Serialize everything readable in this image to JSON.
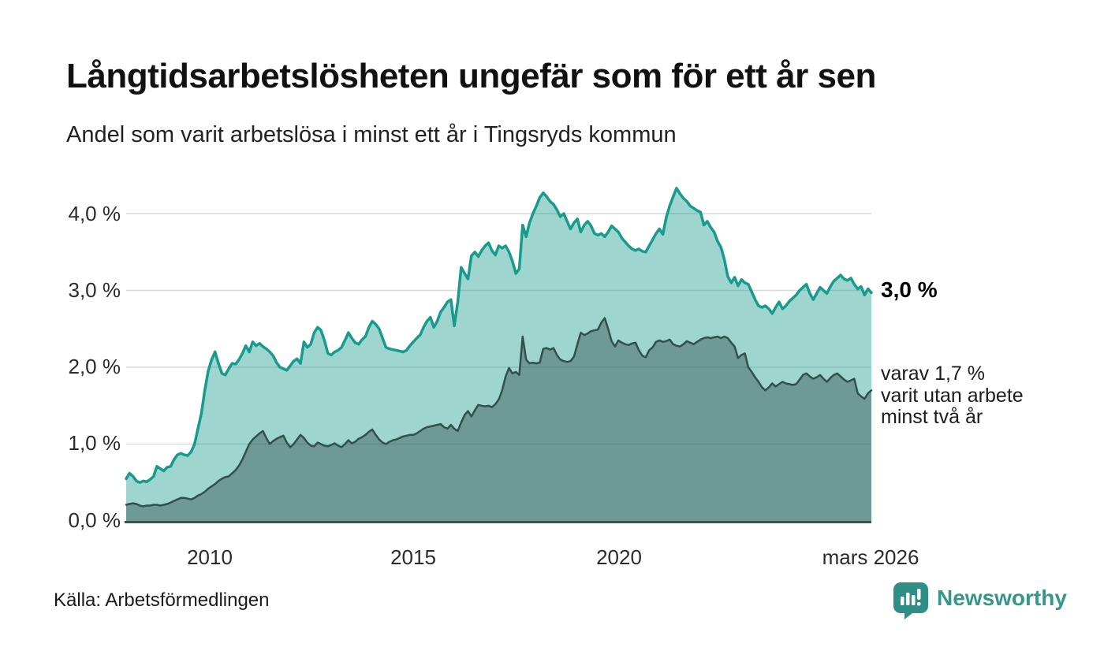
{
  "header": {
    "title": "Långtidsarbetslösheten ungefär som för ett år sen",
    "subtitle": "Andel som varit arbetslösa i minst ett år i Tingsryds kommun"
  },
  "chart_data": {
    "type": "area",
    "title": "Långtidsarbetslösheten ungefär som för ett år sen",
    "subtitle": "Andel som varit arbetslösa i minst ett år i Tingsryds kommun",
    "grid": true,
    "x_axis": {
      "start_year": 2008,
      "points_per_year": 12,
      "tick_labels": [
        "2010",
        "2015",
        "2020",
        "mars 2026"
      ]
    },
    "y_axis": {
      "tick_labels": [
        "4,0 %",
        "3,0 %",
        "2,0 %",
        "1,0 %",
        "0,0 %"
      ],
      "gridline_values": [
        1,
        2,
        3,
        4
      ],
      "range": [
        0,
        4.5
      ]
    },
    "series": [
      {
        "name": "Andel arbetslösa minst ett år",
        "color": "#189a8d",
        "fill": "rgba(24,154,141,0.42)",
        "latest_value": "3,0 %",
        "values": [
          0.55,
          0.62,
          0.58,
          0.52,
          0.5,
          0.52,
          0.51,
          0.54,
          0.58,
          0.71,
          0.68,
          0.65,
          0.7,
          0.71,
          0.8,
          0.86,
          0.88,
          0.86,
          0.85,
          0.9,
          1.0,
          1.2,
          1.4,
          1.7,
          1.95,
          2.1,
          2.2,
          2.05,
          1.92,
          1.9,
          1.98,
          2.05,
          2.04,
          2.1,
          2.18,
          2.28,
          2.2,
          2.33,
          2.28,
          2.31,
          2.27,
          2.24,
          2.2,
          2.15,
          2.06,
          2.0,
          1.98,
          1.96,
          2.02,
          2.08,
          2.11,
          2.05,
          2.33,
          2.26,
          2.3,
          2.45,
          2.52,
          2.48,
          2.35,
          2.18,
          2.16,
          2.2,
          2.22,
          2.26,
          2.35,
          2.45,
          2.38,
          2.32,
          2.3,
          2.36,
          2.4,
          2.52,
          2.6,
          2.56,
          2.5,
          2.38,
          2.26,
          2.24,
          2.23,
          2.22,
          2.21,
          2.2,
          2.22,
          2.28,
          2.33,
          2.38,
          2.42,
          2.52,
          2.6,
          2.65,
          2.52,
          2.6,
          2.72,
          2.78,
          2.85,
          2.88,
          2.54,
          2.85,
          3.3,
          3.22,
          3.15,
          3.45,
          3.5,
          3.44,
          3.52,
          3.58,
          3.62,
          3.52,
          3.46,
          3.58,
          3.55,
          3.58,
          3.5,
          3.38,
          3.22,
          3.28,
          3.85,
          3.7,
          3.88,
          4.0,
          4.1,
          4.21,
          4.27,
          4.22,
          4.16,
          4.12,
          4.05,
          3.96,
          4.0,
          3.9,
          3.8,
          3.88,
          3.93,
          3.76,
          3.85,
          3.9,
          3.84,
          3.74,
          3.72,
          3.74,
          3.7,
          3.76,
          3.84,
          3.8,
          3.76,
          3.68,
          3.63,
          3.58,
          3.54,
          3.52,
          3.54,
          3.51,
          3.5,
          3.58,
          3.66,
          3.74,
          3.8,
          3.73,
          3.95,
          4.1,
          4.22,
          4.33,
          4.26,
          4.2,
          4.16,
          4.1,
          4.07,
          4.04,
          4.02,
          3.85,
          3.9,
          3.82,
          3.76,
          3.64,
          3.56,
          3.4,
          3.18,
          3.1,
          3.17,
          3.06,
          3.14,
          3.1,
          3.08,
          2.98,
          2.88,
          2.8,
          2.78,
          2.8,
          2.76,
          2.7,
          2.78,
          2.85,
          2.76,
          2.8,
          2.86,
          2.9,
          2.94,
          3.0,
          3.04,
          3.08,
          2.96,
          2.88,
          2.96,
          3.04,
          3.0,
          2.96,
          3.05,
          3.12,
          3.16,
          3.2,
          3.15,
          3.13,
          3.16,
          3.08,
          3.02,
          3.05,
          2.94,
          3.02,
          2.97
        ]
      },
      {
        "name": "Andel utan arbete minst två år",
        "color": "#31504b",
        "fill": "rgba(52,81,77,0.45)",
        "latest_value": "1,7 %",
        "values": [
          0.21,
          0.22,
          0.23,
          0.22,
          0.2,
          0.19,
          0.2,
          0.2,
          0.21,
          0.21,
          0.2,
          0.21,
          0.22,
          0.24,
          0.26,
          0.28,
          0.3,
          0.3,
          0.29,
          0.28,
          0.3,
          0.33,
          0.35,
          0.38,
          0.42,
          0.45,
          0.48,
          0.52,
          0.55,
          0.57,
          0.58,
          0.62,
          0.66,
          0.72,
          0.8,
          0.9,
          1.0,
          1.06,
          1.1,
          1.14,
          1.17,
          1.08,
          1.0,
          1.04,
          1.07,
          1.09,
          1.11,
          1.02,
          0.96,
          1.0,
          1.06,
          1.12,
          1.08,
          1.02,
          0.98,
          0.97,
          1.02,
          1.0,
          0.98,
          0.97,
          0.99,
          1.01,
          0.98,
          0.96,
          1.0,
          1.05,
          1.01,
          1.03,
          1.07,
          1.09,
          1.12,
          1.16,
          1.19,
          1.12,
          1.06,
          1.02,
          1.0,
          1.03,
          1.05,
          1.06,
          1.08,
          1.1,
          1.11,
          1.12,
          1.12,
          1.14,
          1.17,
          1.2,
          1.22,
          1.23,
          1.24,
          1.25,
          1.26,
          1.22,
          1.2,
          1.25,
          1.2,
          1.17,
          1.28,
          1.38,
          1.43,
          1.36,
          1.44,
          1.51,
          1.5,
          1.49,
          1.5,
          1.48,
          1.52,
          1.58,
          1.7,
          1.88,
          1.99,
          1.92,
          1.94,
          1.9,
          2.4,
          2.1,
          2.05,
          2.06,
          2.05,
          2.06,
          2.24,
          2.25,
          2.23,
          2.25,
          2.16,
          2.1,
          2.08,
          2.07,
          2.08,
          2.14,
          2.3,
          2.45,
          2.42,
          2.44,
          2.47,
          2.48,
          2.49,
          2.58,
          2.64,
          2.5,
          2.34,
          2.27,
          2.35,
          2.32,
          2.3,
          2.29,
          2.31,
          2.32,
          2.22,
          2.15,
          2.13,
          2.22,
          2.26,
          2.33,
          2.35,
          2.33,
          2.34,
          2.36,
          2.3,
          2.28,
          2.27,
          2.3,
          2.34,
          2.32,
          2.3,
          2.33,
          2.36,
          2.38,
          2.39,
          2.38,
          2.39,
          2.4,
          2.38,
          2.4,
          2.38,
          2.32,
          2.27,
          2.12,
          2.16,
          2.18,
          2.0,
          1.94,
          1.87,
          1.81,
          1.74,
          1.7,
          1.74,
          1.79,
          1.75,
          1.78,
          1.81,
          1.79,
          1.78,
          1.77,
          1.78,
          1.84,
          1.9,
          1.92,
          1.88,
          1.85,
          1.87,
          1.9,
          1.85,
          1.81,
          1.86,
          1.9,
          1.92,
          1.88,
          1.84,
          1.81,
          1.83,
          1.85,
          1.66,
          1.62,
          1.59,
          1.66,
          1.7
        ]
      }
    ],
    "annotations": {
      "latest_total": "3,0 %",
      "latest_two_years_lines": [
        "varav 1,7 %",
        "varit utan arbete",
        "minst två år"
      ]
    },
    "legend": "none"
  },
  "footer": {
    "source": "Källa: Arbetsförmedlingen",
    "brand": "Newsworthy"
  },
  "colors": {
    "line_total": "#189a8d",
    "line_two_years": "#31504b",
    "gridline": "#d9d9d9",
    "baseline": "#3f4f4c",
    "brand_teal": "#2f8e85"
  }
}
